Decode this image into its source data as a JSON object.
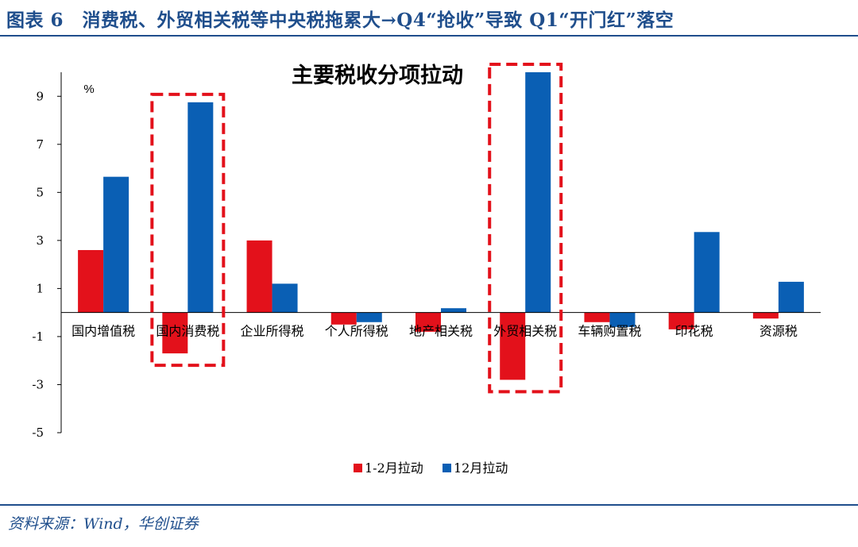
{
  "header": {
    "title": "图表 6　消费税、外贸相关税等中央税拖累大→Q4“抢收”导致 Q1“开门红”落空"
  },
  "source": {
    "text": "资料来源：Wind，华创证券"
  },
  "colors": {
    "series1": "#E3111B",
    "series2": "#0A5FB4",
    "highlight": "#E3111B",
    "brand": "#1F4E8C"
  },
  "chart_data": {
    "type": "bar",
    "title": "主要税收分项拉动",
    "ylabel": "%",
    "xlabel": "",
    "ylim": [
      -5,
      10
    ],
    "yticks": [
      9,
      7,
      5,
      3,
      1,
      -1,
      -3,
      -5
    ],
    "grid": false,
    "legend_position": "bottom-center",
    "categories": [
      "国内增值税",
      "国内消费税",
      "企业所得税",
      "个人所得税",
      "地产相关税",
      "外贸相关税",
      "车辆购置税",
      "印花税",
      "资源税"
    ],
    "series": [
      {
        "name": "1-2月拉动",
        "values": [
          2.6,
          -1.7,
          3.0,
          -0.5,
          -0.8,
          -2.8,
          -0.4,
          -0.7,
          -0.25
        ]
      },
      {
        "name": "12月拉动",
        "values": [
          5.65,
          8.75,
          1.2,
          -0.4,
          0.18,
          10.0,
          -0.6,
          3.35,
          1.28
        ]
      }
    ],
    "highlighted_categories": [
      "国内消费税",
      "外贸相关税"
    ]
  }
}
